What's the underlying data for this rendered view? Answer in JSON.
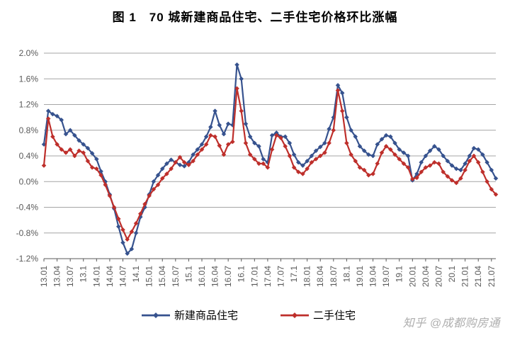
{
  "title": "图 1　70 城新建商品住宅、二手住宅价格环比涨幅",
  "title_fontsize": 17,
  "watermark": "知乎 @成都购房通",
  "chart": {
    "type": "line",
    "background_color": "#ffffff",
    "grid_color": "#a6a6a6",
    "axis_color": "#595959",
    "label_color": "#595959",
    "label_fontsize": 12,
    "legend_fontsize": 15,
    "ylim": [
      -1.2,
      2.0
    ],
    "ytick_step": 0.4,
    "ytick_format_suffix": "%",
    "yticks": [
      "2.0%",
      "1.6%",
      "1.2%",
      "0.8%",
      "0.4%",
      "0.0%",
      "-0.4%",
      "-0.8%",
      "-1.2%"
    ],
    "x_labels": [
      "13.01",
      "13.04",
      "13.07",
      "13.1",
      "14.01",
      "14.04",
      "14.07",
      "14.1",
      "15.01",
      "15.04",
      "15.07",
      "15.1",
      "16.01",
      "16.04",
      "16.07",
      "16.1",
      "17.01",
      "17.04",
      "17.07",
      "17.1",
      "18.01",
      "18.04",
      "18.07",
      "18.1",
      "19.01",
      "19.04",
      "19.07",
      "19.1",
      "20.01",
      "20.04",
      "20.07",
      "20.1",
      "21.01",
      "21.04",
      "21.07"
    ],
    "x_label_step_months": 3,
    "line_width": 2.2,
    "marker_size": 3,
    "marker_style": "diamond",
    "legend_position": "bottom",
    "series": [
      {
        "name": "新建商品住宅",
        "color": "#36528e",
        "values": [
          0.58,
          1.1,
          1.05,
          1.02,
          0.96,
          0.74,
          0.8,
          0.72,
          0.64,
          0.58,
          0.52,
          0.44,
          0.35,
          0.16,
          0.0,
          -0.2,
          -0.42,
          -0.7,
          -0.95,
          -1.12,
          -1.05,
          -0.8,
          -0.55,
          -0.4,
          -0.2,
          0.0,
          0.1,
          0.2,
          0.28,
          0.34,
          0.3,
          0.26,
          0.24,
          0.3,
          0.42,
          0.5,
          0.58,
          0.7,
          0.85,
          1.1,
          0.88,
          0.74,
          0.9,
          0.88,
          1.82,
          1.6,
          0.9,
          0.7,
          0.6,
          0.55,
          0.35,
          0.3,
          0.72,
          0.76,
          0.7,
          0.7,
          0.6,
          0.42,
          0.3,
          0.25,
          0.32,
          0.4,
          0.48,
          0.54,
          0.6,
          0.82,
          1.0,
          1.5,
          1.38,
          1.0,
          0.8,
          0.7,
          0.55,
          0.48,
          0.42,
          0.4,
          0.58,
          0.66,
          0.72,
          0.7,
          0.6,
          0.5,
          0.45,
          0.4,
          0.02,
          0.12,
          0.3,
          0.4,
          0.48,
          0.55,
          0.5,
          0.4,
          0.32,
          0.25,
          0.2,
          0.18,
          0.28,
          0.4,
          0.52,
          0.5,
          0.42,
          0.3,
          0.18,
          0.05
        ]
      },
      {
        "name": "二手住宅",
        "color": "#be2f2b",
        "values": [
          0.25,
          0.98,
          0.7,
          0.58,
          0.5,
          0.45,
          0.5,
          0.4,
          0.48,
          0.45,
          0.32,
          0.22,
          0.2,
          0.1,
          -0.05,
          -0.22,
          -0.4,
          -0.58,
          -0.75,
          -0.9,
          -0.78,
          -0.65,
          -0.5,
          -0.35,
          -0.22,
          -0.12,
          -0.05,
          0.05,
          0.12,
          0.2,
          0.3,
          0.38,
          0.3,
          0.26,
          0.32,
          0.42,
          0.5,
          0.58,
          0.72,
          0.7,
          0.56,
          0.42,
          0.58,
          0.62,
          1.45,
          1.1,
          0.6,
          0.42,
          0.35,
          0.28,
          0.28,
          0.22,
          0.5,
          0.72,
          0.68,
          0.55,
          0.4,
          0.22,
          0.15,
          0.12,
          0.2,
          0.3,
          0.35,
          0.4,
          0.45,
          0.6,
          0.8,
          1.42,
          1.1,
          0.6,
          0.42,
          0.32,
          0.22,
          0.18,
          0.1,
          0.12,
          0.28,
          0.45,
          0.55,
          0.5,
          0.42,
          0.35,
          0.28,
          0.22,
          0.04,
          0.06,
          0.15,
          0.22,
          0.25,
          0.3,
          0.28,
          0.15,
          0.08,
          0.02,
          -0.02,
          0.05,
          0.18,
          0.32,
          0.4,
          0.3,
          0.15,
          0.0,
          -0.12,
          -0.2
        ]
      }
    ]
  }
}
